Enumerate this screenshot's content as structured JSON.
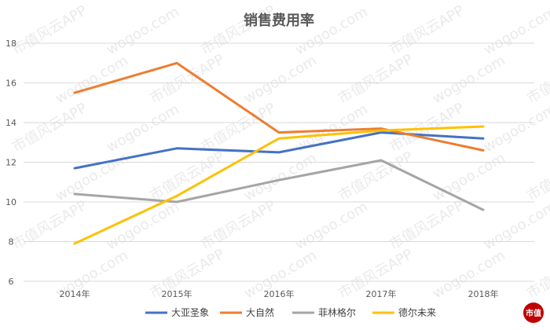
{
  "chart_data": {
    "type": "line",
    "title": "销售费用率",
    "xlabel": "",
    "ylabel": "",
    "categories": [
      "2014年",
      "2015年",
      "2016年",
      "2017年",
      "2018年"
    ],
    "ylim": [
      6,
      18
    ],
    "yticks": [
      6,
      8,
      10,
      12,
      14,
      16,
      18
    ],
    "grid": true,
    "legend_position": "bottom",
    "series": [
      {
        "name": "大亚圣象",
        "color": "#4472c4",
        "values": [
          11.7,
          12.7,
          12.5,
          13.5,
          13.2
        ]
      },
      {
        "name": "大自然",
        "color": "#ed7d31",
        "values": [
          15.5,
          17.0,
          13.5,
          13.7,
          12.6
        ]
      },
      {
        "name": "菲林格尔",
        "color": "#a5a5a5",
        "values": [
          10.4,
          10.0,
          11.1,
          12.1,
          9.6
        ]
      },
      {
        "name": "德尔未来",
        "color": "#ffc000",
        "values": [
          7.9,
          10.3,
          13.2,
          13.6,
          13.8
        ]
      }
    ]
  },
  "watermark": {
    "text": "市值风云APP",
    "domain": "wogoo.com"
  },
  "logo": {
    "text": "市值"
  }
}
